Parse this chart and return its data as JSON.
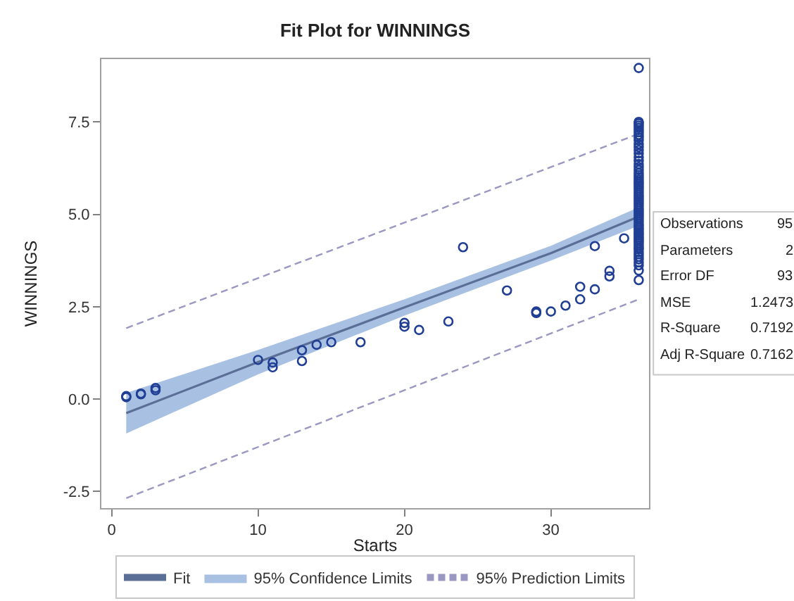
{
  "chart_data": {
    "type": "scatter",
    "title": "Fit Plot for WINNINGS",
    "xlabel": "Starts",
    "ylabel": "WINNINGS",
    "xlim": [
      -0.7,
      36.7
    ],
    "xticks": [
      0,
      10,
      20,
      30
    ],
    "ylim": [
      -2.95,
      9.2
    ],
    "yticks": [
      -2.5,
      {
        "value": 0,
        "label": "0.0"
      },
      2.5,
      {
        "value": 5,
        "label": "5.0"
      },
      7.5
    ],
    "grid": false,
    "legend": "bottom",
    "annotations": [
      "Observations 95",
      "Parameters 2",
      "Error DF 93",
      "MSE 1.2473",
      "R-Square 0.7192",
      "Adj R-Square 0.7162"
    ],
    "series": [
      {
        "type": "area",
        "name": "95% Confidence Limits",
        "color": "#a8c1e3"
      },
      {
        "type": "line",
        "name": "95% Prediction Limits",
        "color": "#9a98c2",
        "line_style": "dashed",
        "x": [
          1,
          36
        ],
        "values": [
          1.92,
          7.18
        ]
      },
      {
        "type": "line",
        "color": "#9a98c2",
        "line_style": "dashed",
        "x": [
          1,
          36
        ],
        "values": [
          -2.68,
          2.7
        ]
      },
      {
        "type": "line",
        "name": "Fit",
        "color": "#5b6e96",
        "x": [
          1,
          10,
          20,
          30,
          36
        ],
        "values": [
          -0.38,
          1.0,
          2.48,
          3.95,
          4.94
        ],
        "lower": [
          -0.93,
          0.67,
          2.26,
          3.75,
          4.69
        ],
        "upper": [
          0.17,
          1.33,
          2.7,
          4.15,
          5.19
        ]
      },
      {
        "marker": "circle",
        "color": "#1f3e94",
        "x": [
          1,
          1,
          2,
          2,
          3,
          3,
          10,
          11,
          11,
          13,
          13,
          14,
          15,
          17,
          20,
          20,
          21,
          23,
          24,
          27,
          29,
          29,
          30,
          31,
          32,
          32,
          33,
          33,
          34,
          34,
          35,
          36,
          36,
          36,
          36,
          36,
          36,
          36,
          36,
          36,
          36,
          36,
          36,
          36,
          36,
          36,
          36,
          36,
          36,
          36,
          36,
          36,
          36,
          36,
          36,
          36,
          36,
          36,
          36,
          36,
          36,
          36,
          36,
          36,
          36,
          36,
          36,
          36,
          36,
          36,
          36,
          36,
          36,
          36,
          36,
          36,
          36,
          36,
          36,
          36,
          36,
          36,
          36,
          36,
          36,
          36,
          36,
          36,
          36,
          36,
          36,
          36,
          36,
          36,
          36
        ],
        "values": [
          0.08,
          0.05,
          0.15,
          0.13,
          0.3,
          0.24,
          1.06,
          0.99,
          0.86,
          1.32,
          1.03,
          1.47,
          1.54,
          1.54,
          2.06,
          1.96,
          1.87,
          2.1,
          4.11,
          2.94,
          2.37,
          2.33,
          2.37,
          2.53,
          3.04,
          2.7,
          4.14,
          2.97,
          3.47,
          3.32,
          4.35,
          3.22,
          3.48,
          3.62,
          3.7,
          3.78,
          3.85,
          3.92,
          3.98,
          4.05,
          4.1,
          4.16,
          4.22,
          4.28,
          4.33,
          4.38,
          4.43,
          4.48,
          4.53,
          4.58,
          4.63,
          4.68,
          4.74,
          4.8,
          4.86,
          4.92,
          4.98,
          5.04,
          5.1,
          5.16,
          5.22,
          5.28,
          5.34,
          5.4,
          5.46,
          5.52,
          5.58,
          5.64,
          5.7,
          5.76,
          5.82,
          5.88,
          5.94,
          6.0,
          6.06,
          6.12,
          6.2,
          6.28,
          6.36,
          6.45,
          6.55,
          6.65,
          6.74,
          6.82,
          6.9,
          7.0,
          7.08,
          7.15,
          7.22,
          7.28,
          7.34,
          7.4,
          7.46,
          7.5,
          8.96
        ]
      }
    ]
  }
}
